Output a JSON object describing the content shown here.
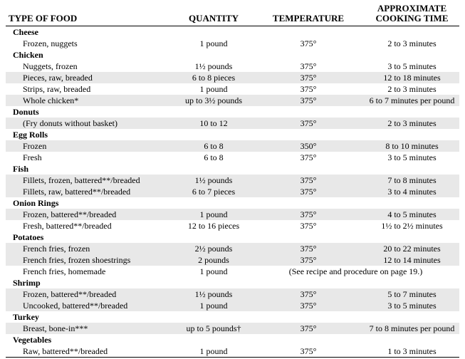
{
  "table": {
    "headers": {
      "food": "TYPE OF FOOD",
      "quantity": "QUANTITY",
      "temperature": "TEMPERATURE",
      "time": "APPROXIMATE COOKING TIME"
    },
    "sections": [
      {
        "name": "Cheese",
        "rows": [
          {
            "food": "Frozen, nuggets",
            "quantity": "1 pound",
            "temperature": "375°",
            "time": "2 to 3 minutes",
            "shaded": false
          }
        ]
      },
      {
        "name": "Chicken",
        "rows": [
          {
            "food": "Nuggets, frozen",
            "quantity": "1½ pounds",
            "temperature": "375°",
            "time": "3 to 5 minutes",
            "shaded": false
          },
          {
            "food": "Pieces, raw, breaded",
            "quantity": "6 to 8 pieces",
            "temperature": "375°",
            "time": "12 to 18 minutes",
            "shaded": true
          },
          {
            "food": "Strips, raw, breaded",
            "quantity": "1 pound",
            "temperature": "375°",
            "time": "2 to 3 minutes",
            "shaded": false
          },
          {
            "food": "Whole chicken*",
            "quantity": "up to 3½ pounds",
            "temperature": "375°",
            "time": "6 to 7 minutes per pound",
            "shaded": true
          }
        ]
      },
      {
        "name": "Donuts",
        "rows": [
          {
            "food": "(Fry donuts without basket)",
            "quantity": "10 to 12",
            "temperature": "375°",
            "time": "2 to 3 minutes",
            "shaded": true
          }
        ]
      },
      {
        "name": "Egg Rolls",
        "rows": [
          {
            "food": "Frozen",
            "quantity": "6 to 8",
            "temperature": "350°",
            "time": "8 to 10 minutes",
            "shaded": true
          },
          {
            "food": "Fresh",
            "quantity": "6 to 8",
            "temperature": "375°",
            "time": "3 to 5 minutes",
            "shaded": false
          }
        ]
      },
      {
        "name": "Fish",
        "rows": [
          {
            "food": "Fillets, frozen, battered**/breaded",
            "quantity": "1½ pounds",
            "temperature": "375°",
            "time": "7 to 8 minutes",
            "shaded": true
          },
          {
            "food": "Fillets, raw, battered**/breaded",
            "quantity": "6 to 7 pieces",
            "temperature": "375°",
            "time": "3 to 4 minutes",
            "shaded": true
          }
        ]
      },
      {
        "name": "Onion Rings",
        "rows": [
          {
            "food": "Frozen, battered**/breaded",
            "quantity": "1 pound",
            "temperature": "375°",
            "time": "4 to 5 minutes",
            "shaded": true
          },
          {
            "food": "Fresh, battered**/breaded",
            "quantity": "12 to 16 pieces",
            "temperature": "375°",
            "time": "1½ to 2½ minutes",
            "shaded": false
          }
        ]
      },
      {
        "name": "Potatoes",
        "rows": [
          {
            "food": "French fries, frozen",
            "quantity": "2½ pounds",
            "temperature": "375°",
            "time": "20 to 22 minutes",
            "shaded": true
          },
          {
            "food": "French fries, frozen shoestrings",
            "quantity": "2 pounds",
            "temperature": "375°",
            "time": "12 to 14 minutes",
            "shaded": true
          },
          {
            "food": "French fries, homemade",
            "quantity": "1 pound",
            "note": "(See recipe and procedure on page 19.)",
            "shaded": false
          }
        ]
      },
      {
        "name": "Shrimp",
        "rows": [
          {
            "food": "Frozen, battered**/breaded",
            "quantity": "1½ pounds",
            "temperature": "375°",
            "time": "5 to 7 minutes",
            "shaded": true
          },
          {
            "food": "Uncooked, battered**/breaded",
            "quantity": "1 pound",
            "temperature": "375°",
            "time": "3 to 5 minutes",
            "shaded": true
          }
        ]
      },
      {
        "name": "Turkey",
        "rows": [
          {
            "food": "Breast, bone-in***",
            "quantity": "up to 5 pounds†",
            "temperature": "375°",
            "time": "7 to 8 minutes per pound",
            "shaded": true
          }
        ]
      },
      {
        "name": "Vegetables",
        "rows": [
          {
            "food": "Raw, battered**/breaded",
            "quantity": "1 pound",
            "temperature": "375°",
            "time": "1 to 3 minutes",
            "shaded": false
          }
        ]
      }
    ]
  },
  "colors": {
    "shaded_row": "#e8e8e8",
    "text": "#000000",
    "rule": "#000000"
  }
}
